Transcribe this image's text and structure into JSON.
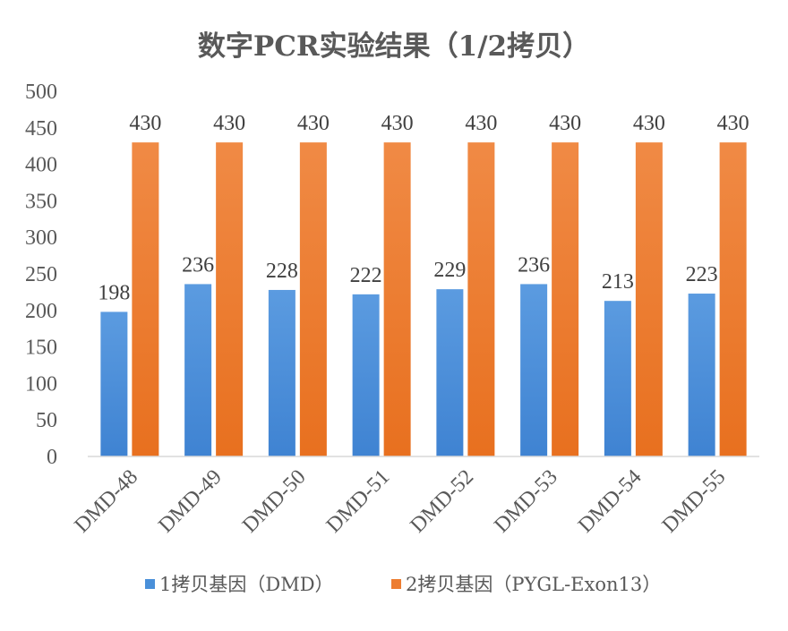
{
  "chart_data": {
    "type": "bar",
    "title": "数字PCR实验结果（1/2拷贝）",
    "categories": [
      "DMD-48",
      "DMD-49",
      "DMD-50",
      "DMD-51",
      "DMD-52",
      "DMD-53",
      "DMD-54",
      "DMD-55"
    ],
    "series": [
      {
        "name": "1拷贝基因（DMD）",
        "values": [
          198,
          236,
          228,
          222,
          229,
          236,
          213,
          223
        ],
        "color": "#4a90d9"
      },
      {
        "name": "2拷贝基因（PYGL-Exon13）",
        "values": [
          430,
          430,
          430,
          430,
          430,
          430,
          430,
          430
        ],
        "color": "#ed7d31"
      }
    ],
    "ylim": [
      0,
      500
    ],
    "yticks": [
      0,
      50,
      100,
      150,
      200,
      250,
      300,
      350,
      400,
      450,
      500
    ],
    "grid": false,
    "legend_position": "bottom",
    "data_labels": true,
    "xlabel": "",
    "ylabel": ""
  }
}
